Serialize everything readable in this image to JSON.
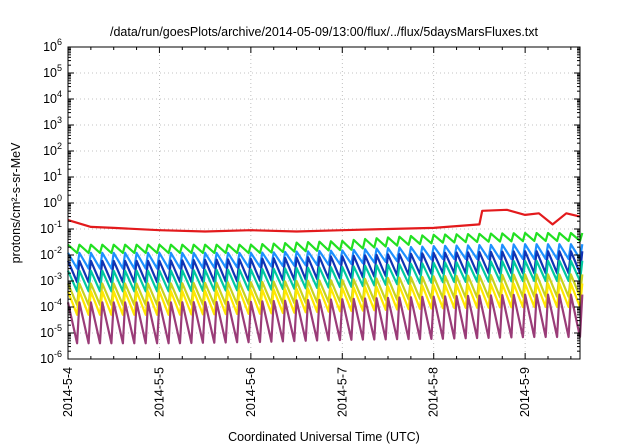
{
  "chart_data": {
    "type": "line",
    "title": "/data/run/goesPlots/archive/2014-05-09/13:00/flux/../flux/5daysMarsFluxes.txt",
    "xlabel": "Coordinated Universal Time (UTC)",
    "ylabel": "protons/cm²-s-sr-MeV",
    "y_scale": "log",
    "ylim": [
      1e-06,
      1000000.0
    ],
    "y_tick_exponents": [
      -6,
      -5,
      -4,
      -3,
      -2,
      -1,
      0,
      1,
      2,
      3,
      4,
      5,
      6
    ],
    "x_tick_labels": [
      "2014-5-4",
      "2014-5-5",
      "2014-5-6",
      "2014-5-7",
      "2014-5-8",
      "2014-5-9"
    ],
    "xlim_days": [
      0,
      5.6
    ],
    "grid": true,
    "legend": "none",
    "series": [
      {
        "color": "#e31a1c",
        "points": [
          [
            0.0,
            0.22
          ],
          [
            0.25,
            0.12
          ],
          [
            0.5,
            0.11
          ],
          [
            1.0,
            0.09
          ],
          [
            1.5,
            0.08
          ],
          [
            2.0,
            0.09
          ],
          [
            2.5,
            0.08
          ],
          [
            3.0,
            0.09
          ],
          [
            3.5,
            0.1
          ],
          [
            4.0,
            0.11
          ],
          [
            4.5,
            0.15
          ],
          [
            4.53,
            0.5
          ],
          [
            4.8,
            0.55
          ],
          [
            5.0,
            0.35
          ],
          [
            5.15,
            0.4
          ],
          [
            5.3,
            0.15
          ],
          [
            5.45,
            0.4
          ],
          [
            5.6,
            0.3
          ]
        ]
      },
      {
        "color": "#22e022",
        "sawtooth": {
          "high": [
            0.025,
            0.025,
            0.025,
            0.035,
            0.06,
            0.07
          ],
          "low": [
            0.012,
            0.012,
            0.012,
            0.016,
            0.03,
            0.035
          ]
        }
      },
      {
        "color": "#1e90ff",
        "sawtooth": {
          "high": [
            0.012,
            0.012,
            0.012,
            0.015,
            0.022,
            0.026
          ],
          "low": [
            0.003,
            0.003,
            0.0035,
            0.0045,
            0.007,
            0.007
          ]
        }
      },
      {
        "color": "#1034b4",
        "sawtooth": {
          "high": [
            0.006,
            0.006,
            0.007,
            0.009,
            0.012,
            0.014
          ],
          "low": [
            0.0009,
            0.0009,
            0.001,
            0.0013,
            0.002,
            0.002
          ]
        }
      },
      {
        "color": "#00c8a0",
        "sawtooth": {
          "high": [
            0.0025,
            0.0025,
            0.0028,
            0.0035,
            0.005,
            0.006
          ],
          "low": [
            0.0004,
            0.0004,
            0.00045,
            0.0006,
            0.0009,
            0.001
          ]
        }
      },
      {
        "color": "#c8d21e",
        "sawtooth": {
          "high": [
            0.0008,
            0.0008,
            0.0009,
            0.0011,
            0.0015,
            0.0018
          ],
          "low": [
            0.00012,
            0.00012,
            0.00013,
            0.00016,
            0.00022,
            0.00025
          ]
        }
      },
      {
        "color": "#ffe800",
        "sawtooth": {
          "high": [
            0.0004,
            0.0004,
            0.00045,
            0.00055,
            0.0007,
            0.0008
          ],
          "low": [
            5e-05,
            5e-05,
            5.5e-05,
            7e-05,
            9e-05,
            0.0001
          ]
        }
      },
      {
        "color": "#9a3c78",
        "sawtooth": {
          "high": [
            0.00015,
            0.00015,
            0.00016,
            0.0002,
            0.00025,
            0.0003
          ],
          "low": [
            4e-06,
            4e-06,
            4.5e-06,
            5.5e-06,
            6e-06,
            7e-06
          ]
        }
      }
    ]
  }
}
